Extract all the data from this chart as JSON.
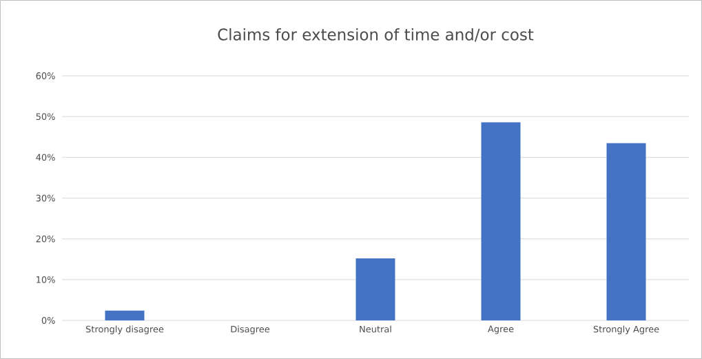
{
  "chart_data": {
    "type": "bar",
    "title": "Claims for extension of time and/or cost",
    "categories": [
      "Strongly disagree",
      "Disagree",
      "Neutral",
      "Agree",
      "Strongly Agree"
    ],
    "values": [
      2.4,
      0,
      15.2,
      48.6,
      43.5
    ],
    "color": "#4472c4",
    "ylim": [
      0,
      60
    ],
    "yticks": [
      {
        "value": 0,
        "label": "0%"
      },
      {
        "value": 10,
        "label": "10%"
      },
      {
        "value": 20,
        "label": "20%"
      },
      {
        "value": 30,
        "label": "30%"
      },
      {
        "value": 40,
        "label": "40%"
      },
      {
        "value": 50,
        "label": "50%"
      },
      {
        "value": 60,
        "label": "60%"
      }
    ],
    "grid": "y"
  }
}
